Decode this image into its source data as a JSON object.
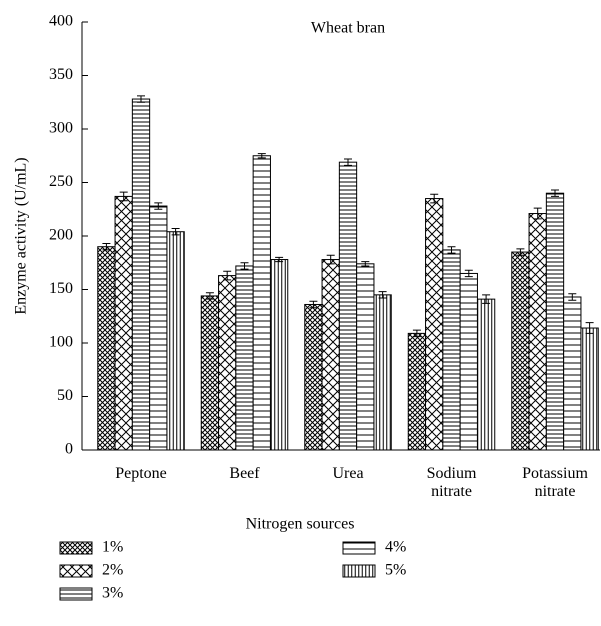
{
  "chart_data": {
    "type": "bar",
    "title": "Wheat bran",
    "x_label": "Nitrogen sources",
    "y_label": "Enzyme activity (U/mL)",
    "categories": [
      "Peptone",
      "Beef",
      "Urea",
      "Sodium nitrate",
      "Potassium nitrate"
    ],
    "series": [
      {
        "name": "1%",
        "color": "#000000",
        "pattern": "fine-crosshatch",
        "values": [
          190,
          144,
          136,
          109,
          185
        ],
        "errors": [
          3,
          3,
          3,
          3,
          3
        ]
      },
      {
        "name": "2%",
        "color": "#000000",
        "pattern": "crosshatch",
        "values": [
          237,
          163,
          178,
          235,
          221
        ],
        "errors": [
          4,
          4,
          4,
          4,
          5
        ]
      },
      {
        "name": "3%",
        "color": "#000000",
        "pattern": "horizontal-fine",
        "values": [
          328,
          172,
          269,
          187,
          240
        ],
        "errors": [
          3,
          3,
          3,
          3,
          3
        ]
      },
      {
        "name": "4%",
        "color": "#000000",
        "pattern": "horizontal",
        "values": [
          228,
          275,
          174,
          165,
          143
        ],
        "errors": [
          3,
          2,
          2,
          3,
          3
        ]
      },
      {
        "name": "5%",
        "color": "#000000",
        "pattern": "vertical",
        "values": [
          204,
          178,
          145,
          141,
          114
        ],
        "errors": [
          3,
          2,
          3,
          4,
          5
        ]
      }
    ],
    "ylim": [
      0,
      400
    ],
    "yticks": [
      0,
      50,
      100,
      150,
      200,
      250,
      300,
      350,
      400
    ],
    "grid": false
  }
}
